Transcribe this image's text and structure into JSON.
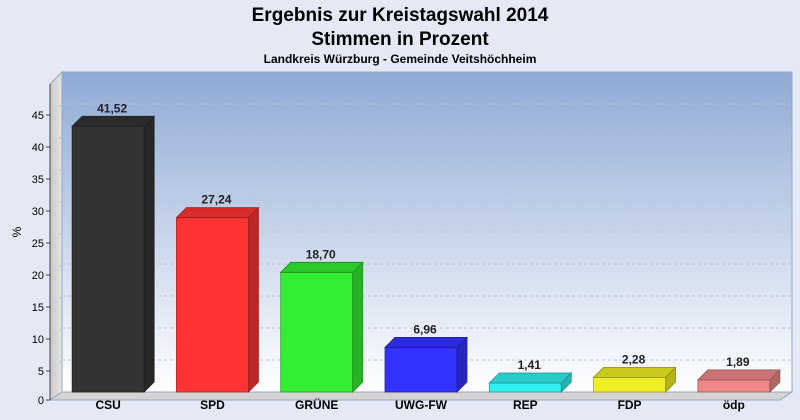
{
  "title_line1": "Ergebnis zur Kreistagswahl 2014",
  "title_line2": "Stimmen in Prozent",
  "subtitle": "Landkreis Würzburg - Gemeinde Veitshöchheim",
  "chart_data": {
    "type": "bar",
    "categories": [
      "CSU",
      "SPD",
      "GRÜNE",
      "UWG-FW",
      "REP",
      "FDP",
      "ödp"
    ],
    "values": [
      41.52,
      27.24,
      18.7,
      6.96,
      1.41,
      2.28,
      1.89
    ],
    "value_labels": [
      "41,52",
      "27,24",
      "18,70",
      "6,96",
      "1,41",
      "2,28",
      "1,89"
    ],
    "colors": [
      "#333333",
      "#ff3333",
      "#33ee33",
      "#3333ff",
      "#33eeee",
      "#eeee22",
      "#ee8888"
    ],
    "ylabel": "%",
    "ylim": [
      0,
      50
    ],
    "yticks": [
      0,
      5,
      10,
      15,
      20,
      25,
      30,
      35,
      40,
      45
    ],
    "grid": true,
    "legend": "none"
  }
}
